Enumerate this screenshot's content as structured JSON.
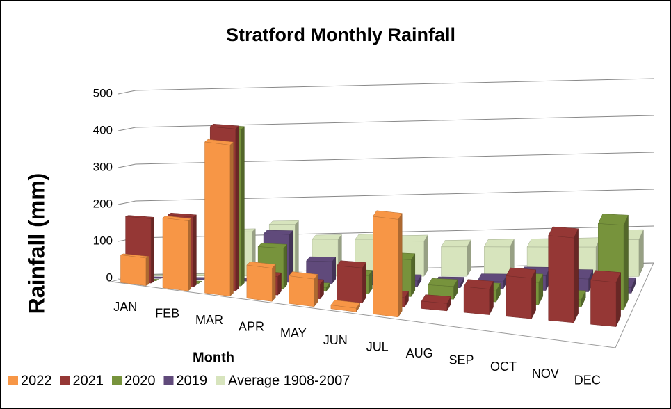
{
  "chart_data": {
    "type": "bar3d",
    "title": "Stratford Monthly Rainfall",
    "x_label": "Month",
    "y_label": "Rainfall (mm)",
    "categories": [
      "JAN",
      "FEB",
      "MAR",
      "APR",
      "MAY",
      "JUN",
      "JUL",
      "AUG",
      "SEP",
      "OCT",
      "NOV",
      "DEC"
    ],
    "series": [
      {
        "name": "2022",
        "color": "#f79646",
        "values": [
          75,
          190,
          410,
          90,
          75,
          10,
          265,
          null,
          null,
          null,
          null,
          null
        ]
      },
      {
        "name": "2021",
        "color": "#953735",
        "values": [
          175,
          190,
          440,
          50,
          40,
          95,
          25,
          20,
          70,
          110,
          230,
          120
        ]
      },
      {
        "name": "2020",
        "color": "#77933c",
        "values": [
          0,
          0,
          425,
          110,
          10,
          50,
          100,
          35,
          30,
          60,
          20,
          230
        ]
      },
      {
        "name": "2019",
        "color": "#604a7b",
        "values": [
          0,
          0,
          0,
          130,
          60,
          25,
          15,
          10,
          20,
          40,
          35,
          15
        ]
      },
      {
        "name": "Average 1908-2007",
        "color": "#d7e4bd",
        "values": [
          0,
          0,
          120,
          140,
          100,
          100,
          95,
          80,
          80,
          80,
          80,
          100
        ]
      }
    ],
    "ylim": [
      0,
      500
    ],
    "yticks": [
      0,
      100,
      200,
      300,
      400,
      500
    ],
    "grid": true,
    "legend": "bottom"
  }
}
